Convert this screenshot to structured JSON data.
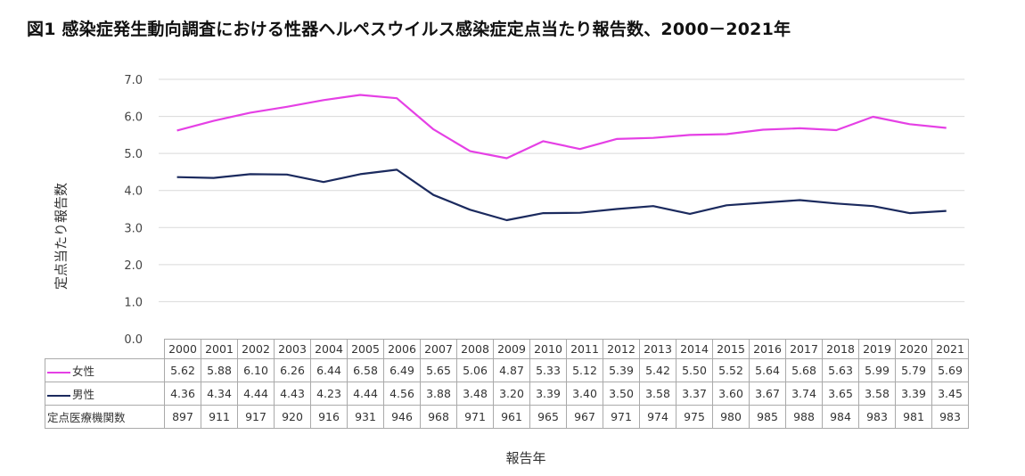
{
  "title": "図1 感染症発生動向調査における性器ヘルペスウイルス感染症定点当たり報告数、2000－2021年",
  "chart_data": {
    "type": "line",
    "title": "図1 感染症発生動向調査における性器ヘルペスウイルス感染症定点当たり報告数、2000－2021年",
    "xlabel": "報告年",
    "ylabel": "定点当たり報告数",
    "ylim": [
      0,
      7
    ],
    "yticks": [
      "0.0",
      "1.0",
      "2.0",
      "3.0",
      "4.0",
      "5.0",
      "6.0",
      "7.0"
    ],
    "grid": true,
    "legend": "data-table-left",
    "categories": [
      "2000",
      "2001",
      "2002",
      "2003",
      "2004",
      "2005",
      "2006",
      "2007",
      "2008",
      "2009",
      "2010",
      "2011",
      "2012",
      "2013",
      "2014",
      "2015",
      "2016",
      "2017",
      "2018",
      "2019",
      "2020",
      "2021"
    ],
    "series": [
      {
        "name": "女性",
        "color": "#E540E5",
        "values": [
          "5.62",
          "5.88",
          "6.10",
          "6.26",
          "6.44",
          "6.58",
          "6.49",
          "5.65",
          "5.06",
          "4.87",
          "5.33",
          "5.12",
          "5.39",
          "5.42",
          "5.50",
          "5.52",
          "5.64",
          "5.68",
          "5.63",
          "5.99",
          "5.79",
          "5.69"
        ]
      },
      {
        "name": "男性",
        "color": "#1B2A5E",
        "values": [
          "4.36",
          "4.34",
          "4.44",
          "4.43",
          "4.23",
          "4.44",
          "4.56",
          "3.88",
          "3.48",
          "3.20",
          "3.39",
          "3.40",
          "3.50",
          "3.58",
          "3.37",
          "3.60",
          "3.67",
          "3.74",
          "3.65",
          "3.58",
          "3.39",
          "3.45"
        ]
      }
    ],
    "table_extra_row": {
      "name": "定点医療機関数",
      "values": [
        "897",
        "911",
        "917",
        "920",
        "916",
        "931",
        "946",
        "968",
        "971",
        "961",
        "965",
        "967",
        "971",
        "974",
        "975",
        "980",
        "985",
        "988",
        "984",
        "983",
        "981",
        "983"
      ]
    }
  }
}
